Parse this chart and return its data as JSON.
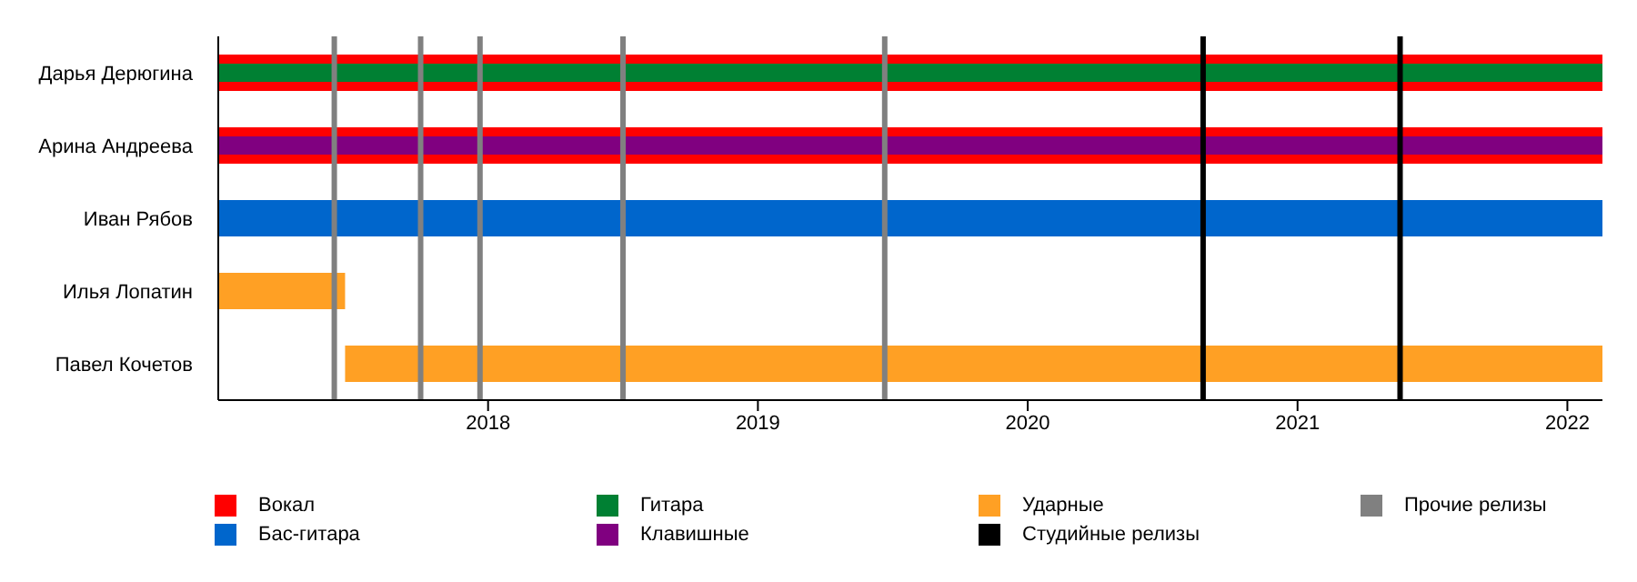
{
  "chart_data": {
    "type": "bar",
    "orientation": "horizontal",
    "categories": [
      "Дарья Дерюгина",
      "Арина Андреева",
      "Иван Рябов",
      "Илья Лопатин",
      "Павел Кочетов"
    ],
    "series": [
      {
        "name": "Вокал",
        "color": "#ff0000",
        "base": [
          2017.0,
          2017.0,
          null,
          null,
          null
        ],
        "values": [
          5.13,
          5.13,
          null,
          null,
          null
        ]
      },
      {
        "name": "Бас-гитара",
        "color": "#0066cc",
        "base": [
          null,
          null,
          2017.0,
          null,
          null
        ],
        "values": [
          null,
          null,
          5.13,
          null,
          null
        ]
      },
      {
        "name": "Гитара",
        "color": "#008033",
        "base": [
          2017.0,
          null,
          null,
          null,
          null
        ],
        "values": [
          5.13,
          null,
          null,
          null,
          null
        ]
      },
      {
        "name": "Клавишные",
        "color": "#800080",
        "base": [
          null,
          2017.0,
          null,
          null,
          null
        ],
        "values": [
          null,
          5.13,
          null,
          null,
          null
        ]
      },
      {
        "name": "Ударные",
        "color": "#ffa024",
        "base": [
          null,
          null,
          null,
          2017.0,
          2017.47
        ],
        "values": [
          null,
          null,
          null,
          0.47,
          4.66
        ]
      }
    ],
    "xlim": [
      2017.0,
      2022.13
    ],
    "xticks": [
      2018,
      2019,
      2020,
      2021,
      2022
    ],
    "ref_lines": [
      {
        "axis": "x",
        "value": 2020.65,
        "label": "Студийные релизы",
        "color": "#000000"
      },
      {
        "axis": "x",
        "value": 2021.38,
        "color": "#000000"
      },
      {
        "axis": "x",
        "value": 2017.43,
        "label": "Прочие релизы",
        "color": "#808080"
      },
      {
        "axis": "x",
        "value": 2017.75,
        "color": "#808080"
      },
      {
        "axis": "x",
        "value": 2017.97,
        "color": "#808080"
      },
      {
        "axis": "x",
        "value": 2018.5,
        "color": "#808080"
      },
      {
        "axis": "x",
        "value": 2019.47,
        "color": "#808080"
      }
    ],
    "grid": false,
    "legend": "bottom"
  }
}
